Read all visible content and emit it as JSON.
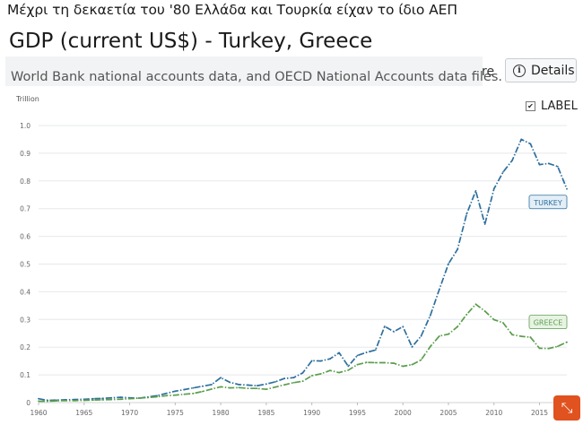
{
  "caption": "Μέχρι τη δεκαετία του '80 Ελλάδα και Τουρκία είχαν το ίδιο ΑΕΠ",
  "header": {
    "title": "GDP (current US$) - Turkey, Greece",
    "source": "World Bank national accounts data, and OECD National Accounts data files.",
    "share_fragment": "re",
    "details_label": "Details"
  },
  "label_toggle": {
    "text": "LABEL",
    "checked": true
  },
  "chart_data": {
    "type": "line",
    "ylabel": "Trillion",
    "ylim": [
      0,
      1.0
    ],
    "yticks": [
      "0",
      "0.1",
      "0.2",
      "0.3",
      "0.4",
      "0.5",
      "0.6",
      "0.7",
      "0.8",
      "0.9",
      "1.0"
    ],
    "xlim": [
      1960,
      2018
    ],
    "xticks": [
      "1960",
      "1965",
      "1970",
      "1975",
      "1980",
      "1985",
      "1990",
      "1995",
      "2000",
      "2005",
      "2010",
      "2015"
    ],
    "grid": true,
    "legend": "inline-end-labels",
    "series": [
      {
        "name": "TURKEY",
        "color": "#2e6f9e",
        "x": [
          1960,
          1961,
          1962,
          1963,
          1964,
          1965,
          1966,
          1967,
          1968,
          1969,
          1970,
          1971,
          1972,
          1973,
          1974,
          1975,
          1976,
          1977,
          1978,
          1979,
          1980,
          1981,
          1982,
          1983,
          1984,
          1985,
          1986,
          1987,
          1988,
          1989,
          1990,
          1991,
          1992,
          1993,
          1994,
          1995,
          1996,
          1997,
          1998,
          1999,
          2000,
          2001,
          2002,
          2003,
          2004,
          2005,
          2006,
          2007,
          2008,
          2009,
          2010,
          2011,
          2012,
          2013,
          2014,
          2015,
          2016,
          2017,
          2018
        ],
        "values": [
          0.014,
          0.008,
          0.009,
          0.01,
          0.011,
          0.012,
          0.014,
          0.015,
          0.017,
          0.019,
          0.017,
          0.016,
          0.02,
          0.025,
          0.033,
          0.041,
          0.047,
          0.053,
          0.059,
          0.065,
          0.09,
          0.073,
          0.065,
          0.063,
          0.061,
          0.067,
          0.075,
          0.087,
          0.09,
          0.107,
          0.151,
          0.15,
          0.158,
          0.18,
          0.131,
          0.17,
          0.181,
          0.19,
          0.275,
          0.256,
          0.274,
          0.201,
          0.24,
          0.314,
          0.408,
          0.501,
          0.553,
          0.681,
          0.764,
          0.644,
          0.772,
          0.832,
          0.874,
          0.95,
          0.934,
          0.859,
          0.863,
          0.852,
          0.771
        ]
      },
      {
        "name": "GREECE",
        "color": "#5a9e4b",
        "x": [
          1960,
          1961,
          1962,
          1963,
          1964,
          1965,
          1966,
          1967,
          1968,
          1969,
          1970,
          1971,
          1972,
          1973,
          1974,
          1975,
          1976,
          1977,
          1978,
          1979,
          1980,
          1981,
          1982,
          1983,
          1984,
          1985,
          1986,
          1987,
          1988,
          1989,
          1990,
          1991,
          1992,
          1993,
          1994,
          1995,
          1996,
          1997,
          1998,
          1999,
          2000,
          2001,
          2002,
          2003,
          2004,
          2005,
          2006,
          2007,
          2008,
          2009,
          2010,
          2011,
          2012,
          2013,
          2014,
          2015,
          2016,
          2017,
          2018
        ],
        "values": [
          0.005,
          0.005,
          0.006,
          0.007,
          0.007,
          0.008,
          0.009,
          0.01,
          0.011,
          0.012,
          0.014,
          0.016,
          0.018,
          0.021,
          0.025,
          0.027,
          0.03,
          0.033,
          0.04,
          0.049,
          0.057,
          0.053,
          0.054,
          0.051,
          0.051,
          0.048,
          0.056,
          0.064,
          0.072,
          0.077,
          0.097,
          0.104,
          0.116,
          0.108,
          0.117,
          0.137,
          0.145,
          0.144,
          0.144,
          0.142,
          0.131,
          0.137,
          0.154,
          0.202,
          0.24,
          0.247,
          0.274,
          0.318,
          0.355,
          0.33,
          0.299,
          0.288,
          0.245,
          0.239,
          0.236,
          0.196,
          0.195,
          0.203,
          0.218
        ]
      }
    ]
  }
}
